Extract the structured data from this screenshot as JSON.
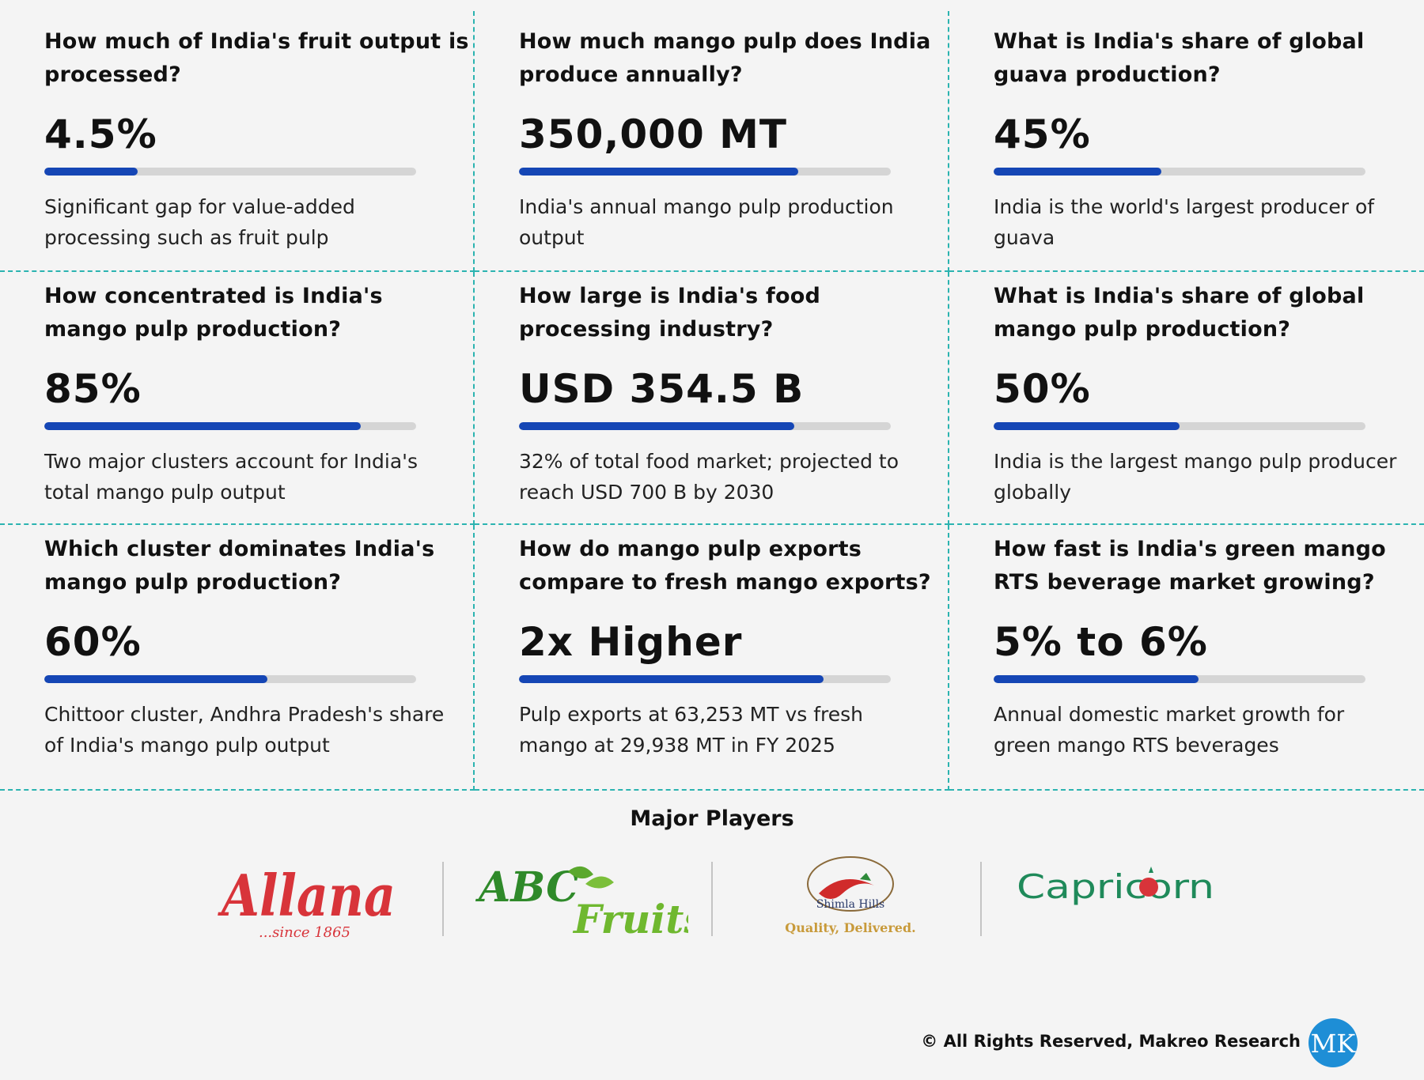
{
  "cards": [
    {
      "question": "How much of India's fruit output is processed?",
      "stat": "4.5%",
      "progress": 0.25,
      "description": "Significant gap for value-added processing such as fruit pulp"
    },
    {
      "question": "How much mango pulp does India produce annually?",
      "stat": "350,000 MT",
      "progress": 0.75,
      "description": "India's annual mango pulp production output"
    },
    {
      "question": "What is India's share of global guava production?",
      "stat": "45%",
      "progress": 0.45,
      "description": "India is the world's largest producer of guava"
    },
    {
      "question": "How concentrated is India's mango pulp production?",
      "stat": "85%",
      "progress": 0.85,
      "description": "Two major clusters account for India's total mango pulp output"
    },
    {
      "question": "How large is India's food processing industry?",
      "stat": "USD 354.5 B",
      "progress": 0.74,
      "description": "32% of total food market; projected to reach USD 700 B by 2030"
    },
    {
      "question": "What is India's share of global mango pulp production?",
      "stat": "50%",
      "progress": 0.5,
      "description": "India is the largest mango pulp producer globally"
    },
    {
      "question": "Which cluster dominates India's mango pulp production?",
      "stat": "60%",
      "progress": 0.6,
      "description": "Chittoor cluster, Andhra Pradesh's share of India's mango pulp output"
    },
    {
      "question": "How do mango pulp exports compare to fresh mango exports?",
      "stat": "2x Higher",
      "progress": 0.82,
      "description": "Pulp exports at 63,253 MT vs fresh mango at 29,938 MT in FY 2025"
    },
    {
      "question": "How fast is India's green mango RTS beverage market growing?",
      "stat": "5% to 6%",
      "progress": 0.55,
      "description": "Annual domestic market growth for green mango RTS beverages"
    }
  ],
  "players_title": "Major Players",
  "logos": {
    "allana": {
      "name": "Allana",
      "tagline": "...since 1865"
    },
    "abc": {
      "word1": "ABC",
      "word2": "Fruits"
    },
    "shimla": {
      "name": "Shimla Hills",
      "tag1": "Quality,",
      "tag2": "Delivered."
    },
    "capricorn": {
      "name": "Capricorn"
    }
  },
  "footer": "© All Rights Reserved, Makreo Research",
  "footer_logo": "MK",
  "colors": {
    "accent": "#1546b5",
    "divider": "#2bb3b0",
    "track": "#d5d5d5"
  }
}
